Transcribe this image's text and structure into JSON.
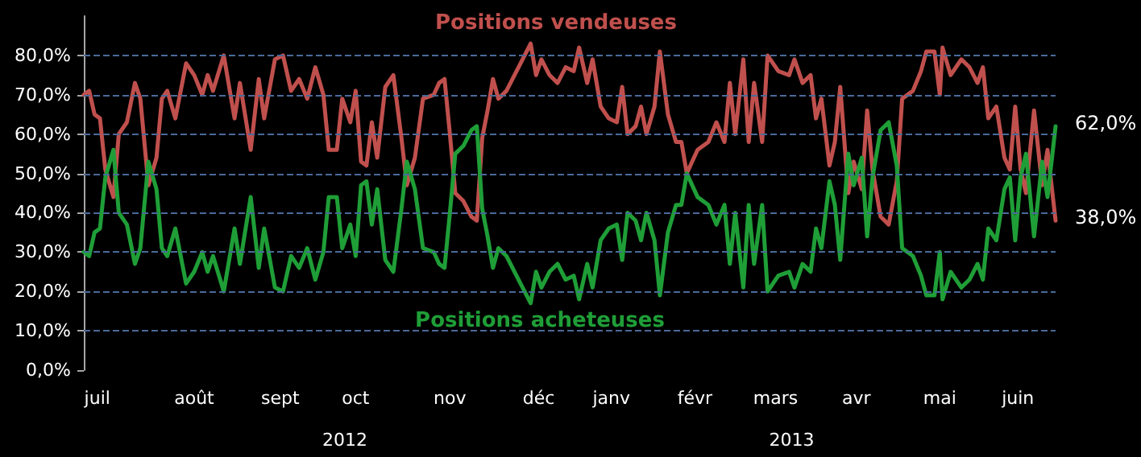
{
  "chart_data": {
    "type": "line",
    "x": [
      "2012-07-02",
      "2012-07-04",
      "2012-07-06",
      "2012-07-08",
      "2012-07-10",
      "2012-07-13",
      "2012-07-15",
      "2012-07-18",
      "2012-07-21",
      "2012-07-23",
      "2012-07-26",
      "2012-07-29",
      "2012-07-31",
      "2012-08-02",
      "2012-08-05",
      "2012-08-09",
      "2012-08-12",
      "2012-08-15",
      "2012-08-17",
      "2012-08-19",
      "2012-08-23",
      "2012-08-27",
      "2012-08-29",
      "2012-09-02",
      "2012-09-05",
      "2012-09-07",
      "2012-09-11",
      "2012-09-14",
      "2012-09-17",
      "2012-09-20",
      "2012-09-23",
      "2012-09-26",
      "2012-09-29",
      "2012-10-01",
      "2012-10-04",
      "2012-10-06",
      "2012-10-09",
      "2012-10-11",
      "2012-10-13",
      "2012-10-15",
      "2012-10-17",
      "2012-10-19",
      "2012-10-22",
      "2012-10-25",
      "2012-10-28",
      "2012-10-30",
      "2012-11-02",
      "2012-11-05",
      "2012-11-09",
      "2012-11-11",
      "2012-11-13",
      "2012-11-15",
      "2012-11-17",
      "2012-11-20",
      "2012-11-23",
      "2012-11-25",
      "2012-11-27",
      "2012-11-29",
      "2012-12-01",
      "2012-12-03",
      "2012-12-06",
      "2012-12-09",
      "2012-12-12",
      "2012-12-15",
      "2012-12-17",
      "2012-12-19",
      "2012-12-22",
      "2012-12-25",
      "2012-12-28",
      "2012-12-31",
      "2013-01-02",
      "2013-01-05",
      "2013-01-07",
      "2013-01-10",
      "2013-01-13",
      "2013-01-16",
      "2013-01-18",
      "2013-01-20",
      "2013-01-23",
      "2013-01-25",
      "2013-01-27",
      "2013-01-30",
      "2013-02-01",
      "2013-02-04",
      "2013-02-07",
      "2013-02-09",
      "2013-02-11",
      "2013-02-15",
      "2013-02-19",
      "2013-02-22",
      "2013-02-25",
      "2013-02-27",
      "2013-03-01",
      "2013-03-04",
      "2013-03-06",
      "2013-03-08",
      "2013-03-11",
      "2013-03-13",
      "2013-03-17",
      "2013-03-21",
      "2013-03-23",
      "2013-03-26",
      "2013-03-29",
      "2013-03-31",
      "2013-04-02",
      "2013-04-05",
      "2013-04-07",
      "2013-04-09",
      "2013-04-12",
      "2013-04-14",
      "2013-04-17",
      "2013-04-19",
      "2013-04-21",
      "2013-04-24",
      "2013-04-27",
      "2013-04-30",
      "2013-05-02",
      "2013-05-06",
      "2013-05-09",
      "2013-05-11",
      "2013-05-14",
      "2013-05-16",
      "2013-05-17",
      "2013-05-20",
      "2013-05-24",
      "2013-05-27",
      "2013-05-30",
      "2013-06-01",
      "2013-06-03",
      "2013-06-06",
      "2013-06-09",
      "2013-06-11",
      "2013-06-13",
      "2013-06-15",
      "2013-06-17",
      "2013-06-20",
      "2013-06-23",
      "2013-06-25",
      "2013-06-28"
    ],
    "series": [
      {
        "name": "Positions vendeuses",
        "color": "#c0504d",
        "values": [
          70,
          71,
          65,
          64,
          51,
          44,
          60,
          63,
          73,
          69,
          47,
          54,
          69,
          71,
          64,
          78,
          75,
          70,
          75,
          71,
          80,
          64,
          73,
          56,
          74,
          64,
          79,
          80,
          71,
          74,
          69,
          77,
          70,
          56,
          56,
          69,
          63,
          71,
          53,
          52,
          63,
          54,
          72,
          75,
          59,
          47,
          54,
          69,
          70,
          73,
          74,
          60,
          45,
          43,
          39,
          38,
          59,
          66,
          74,
          69,
          71,
          75,
          79,
          83,
          75,
          79,
          75,
          73,
          77,
          76,
          82,
          73,
          79,
          67,
          64,
          63,
          72,
          60,
          62,
          67,
          60,
          67,
          81,
          65,
          58,
          58,
          50,
          56,
          58,
          63,
          58,
          73,
          60,
          79,
          58,
          73,
          58,
          80,
          76,
          75,
          79,
          73,
          75,
          64,
          69,
          52,
          58,
          72,
          45,
          53,
          46,
          66,
          51,
          39,
          37,
          48,
          69,
          71,
          76,
          81,
          81,
          70,
          82,
          75,
          79,
          77,
          73,
          77,
          64,
          67,
          54,
          51,
          67,
          51,
          45,
          66,
          47,
          56,
          38
        ]
      },
      {
        "name": "Positions acheteuses",
        "color": "#1f9e37",
        "values": [
          30,
          29,
          35,
          36,
          49,
          56,
          40,
          37,
          27,
          31,
          53,
          46,
          31,
          29,
          36,
          22,
          25,
          30,
          25,
          29,
          20,
          36,
          27,
          44,
          26,
          36,
          21,
          20,
          29,
          26,
          31,
          23,
          30,
          44,
          44,
          31,
          37,
          29,
          47,
          48,
          37,
          46,
          28,
          25,
          41,
          53,
          46,
          31,
          30,
          27,
          26,
          40,
          55,
          57,
          61,
          62,
          41,
          34,
          26,
          31,
          29,
          25,
          21,
          17,
          25,
          21,
          25,
          27,
          23,
          24,
          18,
          27,
          21,
          33,
          36,
          37,
          28,
          40,
          38,
          33,
          40,
          33,
          19,
          35,
          42,
          42,
          50,
          44,
          42,
          37,
          42,
          27,
          40,
          21,
          42,
          27,
          42,
          20,
          24,
          25,
          21,
          27,
          25,
          36,
          31,
          48,
          42,
          28,
          55,
          47,
          54,
          34,
          49,
          61,
          63,
          52,
          31,
          29,
          24,
          19,
          19,
          30,
          18,
          25,
          21,
          23,
          27,
          23,
          36,
          33,
          46,
          49,
          33,
          49,
          55,
          34,
          53,
          44,
          62
        ]
      }
    ],
    "annotations": [
      {
        "text": "62,0%",
        "x": "2013-06-28",
        "y": 62
      },
      {
        "text": "38,0%",
        "x": "2013-06-28",
        "y": 38
      }
    ],
    "xlim": [
      "2012-07-02",
      "2013-06-28"
    ],
    "xticks": [
      {
        "value": "2012-07-07",
        "label": "juil"
      },
      {
        "value": "2012-08-12",
        "label": "août"
      },
      {
        "value": "2012-09-13",
        "label": "sept"
      },
      {
        "value": "2012-10-11",
        "label": "oct"
      },
      {
        "value": "2012-11-15",
        "label": "nov"
      },
      {
        "value": "2012-12-18",
        "label": "déc"
      },
      {
        "value": "2013-01-14",
        "label": "janv"
      },
      {
        "value": "2013-02-14",
        "label": "févr"
      },
      {
        "value": "2013-03-16",
        "label": "mars"
      },
      {
        "value": "2013-04-15",
        "label": "avr"
      },
      {
        "value": "2013-05-16",
        "label": "mai"
      },
      {
        "value": "2013-06-14",
        "label": "juin"
      }
    ],
    "x2lim": [
      "2012-07-02",
      "2013-06-28"
    ],
    "x2ticks": [
      {
        "value": "2012-10-07",
        "label": "2012"
      },
      {
        "value": "2013-03-22",
        "label": "2013"
      }
    ],
    "ylim": [
      0,
      90
    ],
    "yticks": [
      {
        "value": 0,
        "label": "0,0%"
      },
      {
        "value": 10,
        "label": "10,0%"
      },
      {
        "value": 20,
        "label": "20,0%"
      },
      {
        "value": 30,
        "label": "30,0%"
      },
      {
        "value": 40,
        "label": "40,0%"
      },
      {
        "value": 50,
        "label": "50,0%"
      },
      {
        "value": 60,
        "label": "60,0%"
      },
      {
        "value": 70,
        "label": "70,0%"
      },
      {
        "value": 80,
        "label": "80,0%"
      }
    ],
    "grid": "y",
    "legend": false,
    "marker": "none",
    "line_style": "solid"
  }
}
